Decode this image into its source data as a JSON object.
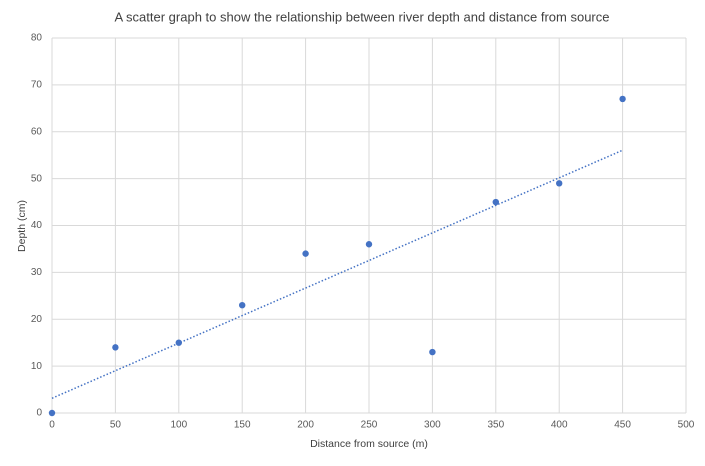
{
  "chart_data": {
    "type": "scatter",
    "title": "A scatter graph to show the relationship between river depth and distance from source",
    "x_label": "Distance from source (m)",
    "y_label": "Depth (cm)",
    "series": [
      {
        "x": [
          0,
          50,
          100,
          150,
          200,
          250,
          300,
          350,
          400,
          450
        ],
        "values": [
          0,
          14,
          15,
          23,
          34,
          36,
          13,
          45,
          49,
          67
        ],
        "color": "#4472c4"
      }
    ],
    "trendline": "linear",
    "xlim": [
      0,
      500
    ],
    "xticks": [
      0,
      50,
      100,
      150,
      200,
      250,
      300,
      350,
      400,
      450,
      500
    ],
    "ylim": [
      0,
      80
    ],
    "yticks": [
      0,
      10,
      20,
      30,
      40,
      50,
      60,
      70,
      80
    ],
    "grid": true
  }
}
